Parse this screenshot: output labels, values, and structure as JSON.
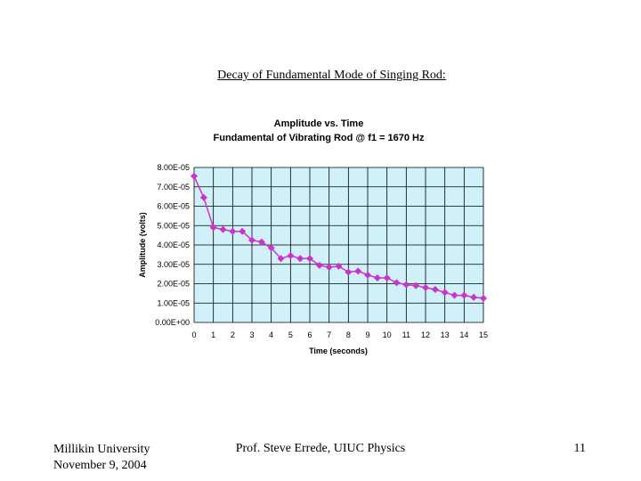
{
  "slide": {
    "title": "Decay of Fundamental Mode of Singing Rod:",
    "footer_institution": "Millikin University",
    "footer_date": "November 9, 2004",
    "footer_author": "Prof. Steve Errede, UIUC Physics",
    "page_number": "11"
  },
  "colors": {
    "plot_background": "#d0f0fa",
    "grid": "#000000",
    "series": "#cc33cc"
  },
  "chart_data": {
    "type": "line",
    "title": "Amplitude vs. Time",
    "subtitle": "Fundamental of Vibrating Rod @ f1 = 1670 Hz",
    "xlabel": "Time (seconds)",
    "ylabel": "Amplitude (volts)",
    "xlim": [
      0,
      15
    ],
    "ylim": [
      0,
      8e-05
    ],
    "x_ticks": [
      "0",
      "1",
      "2",
      "3",
      "4",
      "5",
      "6",
      "7",
      "8",
      "9",
      "10",
      "11",
      "12",
      "13",
      "14",
      "15"
    ],
    "y_ticks": [
      "0.00E+00",
      "1.00E-05",
      "2.00E-05",
      "3.00E-05",
      "4.00E-05",
      "5.00E-05",
      "6.00E-05",
      "7.00E-05",
      "8.00E-05"
    ],
    "grid": true,
    "legend": "none",
    "series": [
      {
        "name": "Amplitude",
        "x": [
          0,
          0.5,
          1,
          1.5,
          2,
          2.5,
          3,
          3.5,
          4,
          4.5,
          5,
          5.5,
          6,
          6.5,
          7,
          7.5,
          8,
          8.5,
          9,
          9.5,
          10,
          10.5,
          11,
          11.5,
          12,
          12.5,
          13,
          13.5,
          14,
          14.5,
          15
        ],
        "values": [
          7.55e-05,
          6.45e-05,
          4.9e-05,
          4.8e-05,
          4.7e-05,
          4.7e-05,
          4.25e-05,
          4.15e-05,
          3.85e-05,
          3.3e-05,
          3.45e-05,
          3.3e-05,
          3.3e-05,
          2.95e-05,
          2.85e-05,
          2.9e-05,
          2.6e-05,
          2.65e-05,
          2.45e-05,
          2.3e-05,
          2.3e-05,
          2.05e-05,
          1.95e-05,
          1.9e-05,
          1.8e-05,
          1.7e-05,
          1.55e-05,
          1.4e-05,
          1.4e-05,
          1.3e-05,
          1.25e-05
        ]
      }
    ]
  }
}
